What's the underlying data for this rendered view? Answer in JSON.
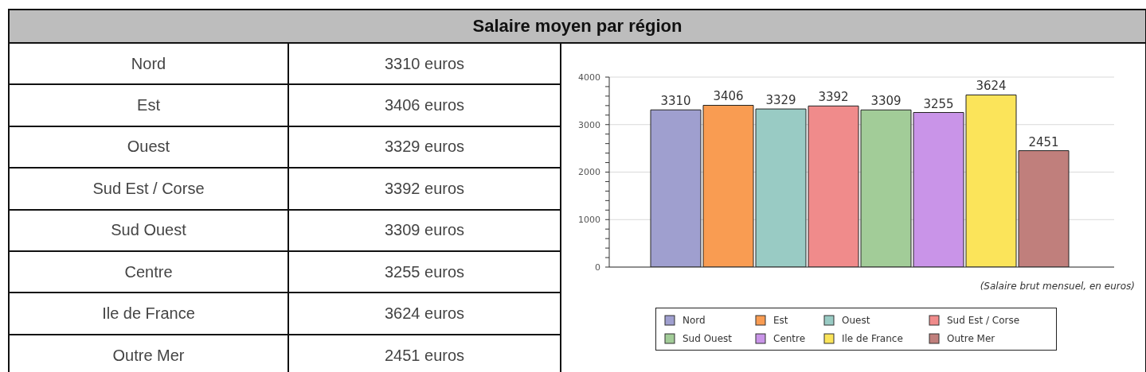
{
  "chart_data": [
    {
      "type": "other",
      "title": "Salaire moyen par région",
      "categories": [
        "Nord",
        "Est",
        "Ouest",
        "Sud Est / Corse",
        "Sud Ouest",
        "Centre",
        "Ile de France",
        "Outre Mer"
      ],
      "value_labels": [
        "3310 euros",
        "3406 euros",
        "3329 euros",
        "3392 euros",
        "3309 euros",
        "3255 euros",
        "3624 euros",
        "2451 euros"
      ]
    },
    {
      "type": "bar",
      "categories": [
        null
      ],
      "series": [
        {
          "name": "Nord",
          "color": "#9f9fcf",
          "values": [
            3310
          ]
        },
        {
          "name": "Est",
          "color": "#f99c52",
          "values": [
            3406
          ]
        },
        {
          "name": "Ouest",
          "color": "#99cbc4",
          "values": [
            3329
          ]
        },
        {
          "name": "Sud Est / Corse",
          "color": "#f08b8b",
          "values": [
            3392
          ]
        },
        {
          "name": "Sud Ouest",
          "color": "#a2cc98",
          "values": [
            3309
          ]
        },
        {
          "name": "Centre",
          "color": "#c994e8",
          "values": [
            3255
          ]
        },
        {
          "name": "Ile de France",
          "color": "#fbe45a",
          "values": [
            3624
          ]
        },
        {
          "name": "Outre Mer",
          "color": "#c07f7c",
          "values": [
            2451
          ]
        }
      ],
      "data_labels": true,
      "ylim": [
        0,
        4000
      ],
      "yticks": [
        0,
        {
          "value": 200,
          "label": null
        },
        {
          "value": 400,
          "label": null
        },
        {
          "value": 600,
          "label": null
        },
        {
          "value": 800,
          "label": null
        },
        1000,
        {
          "value": 1200,
          "label": null
        },
        {
          "value": 1400,
          "label": null
        },
        {
          "value": 1600,
          "label": null
        },
        {
          "value": 1800,
          "label": null
        },
        2000,
        {
          "value": 2200,
          "label": null
        },
        {
          "value": 2400,
          "label": null
        },
        {
          "value": 2600,
          "label": null
        },
        {
          "value": 2800,
          "label": null
        },
        3000,
        {
          "value": 3200,
          "label": null
        },
        {
          "value": 3400,
          "label": null
        },
        {
          "value": 3600,
          "label": null
        },
        {
          "value": 3800,
          "label": null
        },
        4000
      ],
      "grid": "y",
      "legend": "bottom",
      "tick_labels": "y",
      "annotations": [
        "(Salaire brut mensuel, en euros)"
      ]
    }
  ]
}
